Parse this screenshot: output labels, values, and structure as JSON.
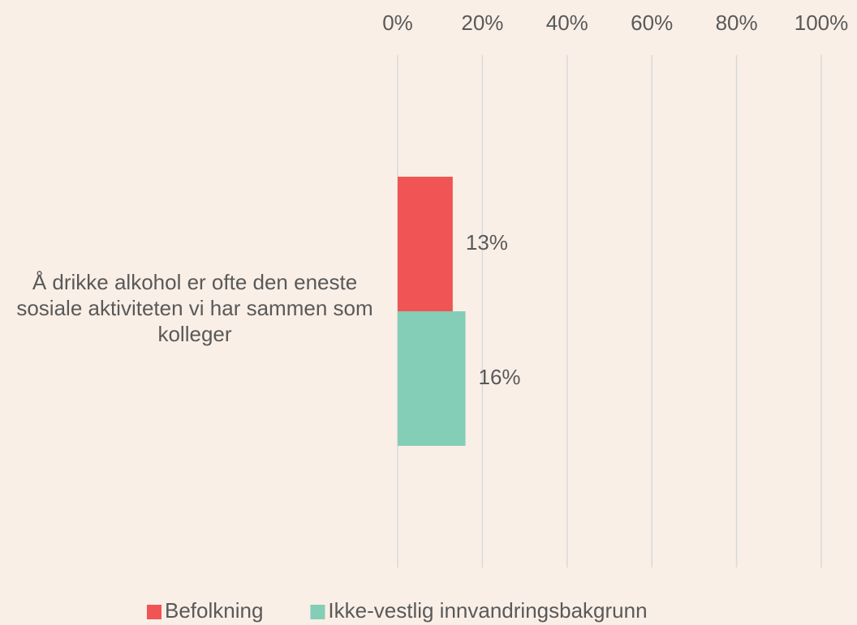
{
  "chart_data": {
    "type": "bar",
    "orientation": "horizontal",
    "categories": [
      "Å drikke alkohol er ofte den eneste sosiale aktiviteten vi har sammen som kolleger"
    ],
    "series": [
      {
        "name": "Befolkning",
        "color": "#f05454",
        "values": [
          13
        ],
        "value_labels": [
          "13%"
        ]
      },
      {
        "name": "Ikke-vestlig innvandringsbakgrunn",
        "color": "#84cdb6",
        "values": [
          16
        ],
        "value_labels": [
          "16%"
        ]
      }
    ],
    "xlim": [
      0,
      100
    ],
    "xticks": [
      {
        "value": 0,
        "label": "0%"
      },
      {
        "value": 20,
        "label": "20%"
      },
      {
        "value": 40,
        "label": "40%"
      },
      {
        "value": 60,
        "label": "60%"
      },
      {
        "value": 80,
        "label": "80%"
      },
      {
        "value": 100,
        "label": "100%"
      }
    ],
    "grid": true,
    "legend": "bottom"
  }
}
